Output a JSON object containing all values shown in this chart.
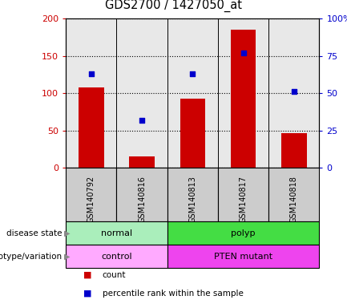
{
  "title": "GDS2700 / 1427050_at",
  "samples": [
    "GSM140792",
    "GSM140816",
    "GSM140813",
    "GSM140817",
    "GSM140818"
  ],
  "counts": [
    108,
    15,
    93,
    185,
    46
  ],
  "percentile_ranks": [
    63,
    32,
    63,
    77,
    51
  ],
  "ylim_left": [
    0,
    200
  ],
  "ylim_right": [
    0,
    100
  ],
  "yticks_left": [
    0,
    50,
    100,
    150,
    200
  ],
  "yticks_right": [
    0,
    25,
    50,
    75,
    100
  ],
  "ytick_labels_right": [
    "0",
    "25",
    "50",
    "75",
    "100%"
  ],
  "disease_state": [
    {
      "label": "normal",
      "span": [
        0,
        2
      ],
      "color": "#aaeebb"
    },
    {
      "label": "polyp",
      "span": [
        2,
        5
      ],
      "color": "#44dd44"
    }
  ],
  "genotype": [
    {
      "label": "control",
      "span": [
        0,
        2
      ],
      "color": "#ffaaff"
    },
    {
      "label": "PTEN mutant",
      "span": [
        2,
        5
      ],
      "color": "#ee44ee"
    }
  ],
  "bar_color": "#cc0000",
  "dot_color": "#0000cc",
  "tick_color_left": "#cc0000",
  "tick_color_right": "#0000cc",
  "bg_color": "#e8e8e8",
  "sample_row_color": "#cccccc",
  "grid_color": "#000000",
  "legend_items": [
    {
      "color": "#cc0000",
      "label": "count"
    },
    {
      "color": "#0000cc",
      "label": "percentile rank within the sample"
    }
  ]
}
